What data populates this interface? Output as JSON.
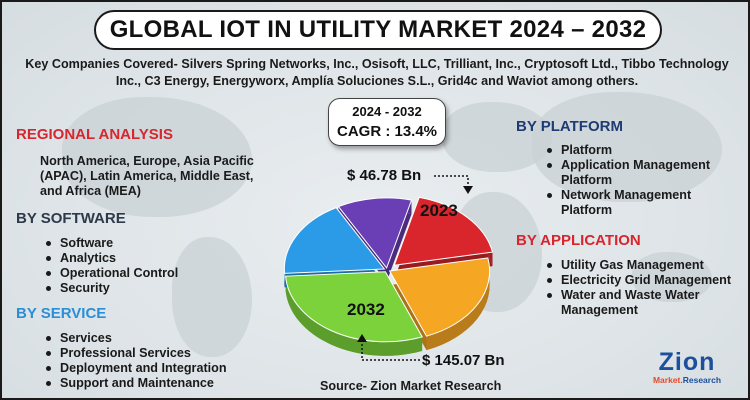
{
  "title": "GLOBAL IOT IN UTILITY MARKET 2024 – 2032",
  "companies_text": "Key Companies Covered- Silvers Spring Networks, Inc., Osisoft, LLC, Trilliant, Inc., Cryptosoft Ltd., Tibbo Technology Inc., C3 Energy, Energyworx, Amplía Soluciones S.L., Grid4c and Waviot among others.",
  "cagr": {
    "years": "2024 - 2032",
    "value": "CAGR : 13.4%"
  },
  "regional": {
    "title": "REGIONAL ANALYSIS",
    "text": "North America, Europe, Asia Pacific (APAC), Latin America, Middle East, and Africa (MEA)"
  },
  "software": {
    "title": "BY SOFTWARE",
    "items": [
      "Software",
      "Analytics",
      "Operational Control",
      "Security"
    ]
  },
  "service": {
    "title": "BY SERVICE",
    "items": [
      "Services",
      "Professional Services",
      "Deployment and Integration",
      "Support and Maintenance"
    ]
  },
  "platform": {
    "title": "BY PLATFORM",
    "items": [
      "Platform",
      "Application Management Platform",
      "Network Management Platform"
    ]
  },
  "application": {
    "title": "BY APPLICATION",
    "items": [
      "Utility Gas Management",
      "Electricity Grid Management",
      "Water and Waste Water Management"
    ]
  },
  "values": {
    "start_amount": "$ 46.78 Bn",
    "end_amount": "$ 145.07 Bn",
    "start_year": "2023",
    "end_year": "2032"
  },
  "source": "Source- Zion Market Research",
  "logo": {
    "main": "Zion",
    "sub_left": "Market.",
    "sub_right": "Research"
  },
  "colors": {
    "red": "#d7262e",
    "navy": "#1f3b73",
    "blue_title": "#2a8fd6",
    "pie_red": "#d9262c",
    "pie_orange": "#f5a623",
    "pie_green": "#7bd23a",
    "pie_blue": "#2b9be8",
    "pie_purple": "#6a3fb5"
  },
  "chart_data": {
    "type": "pie",
    "slices": [
      {
        "color": "#d9262c",
        "value": 18
      },
      {
        "color": "#f5a623",
        "value": 22
      },
      {
        "color": "#7bd23a",
        "value": 30
      },
      {
        "color": "#2b9be8",
        "value": 18
      },
      {
        "color": "#6a3fb5",
        "value": 12
      }
    ],
    "labels": [
      "2023",
      "2032"
    ]
  }
}
